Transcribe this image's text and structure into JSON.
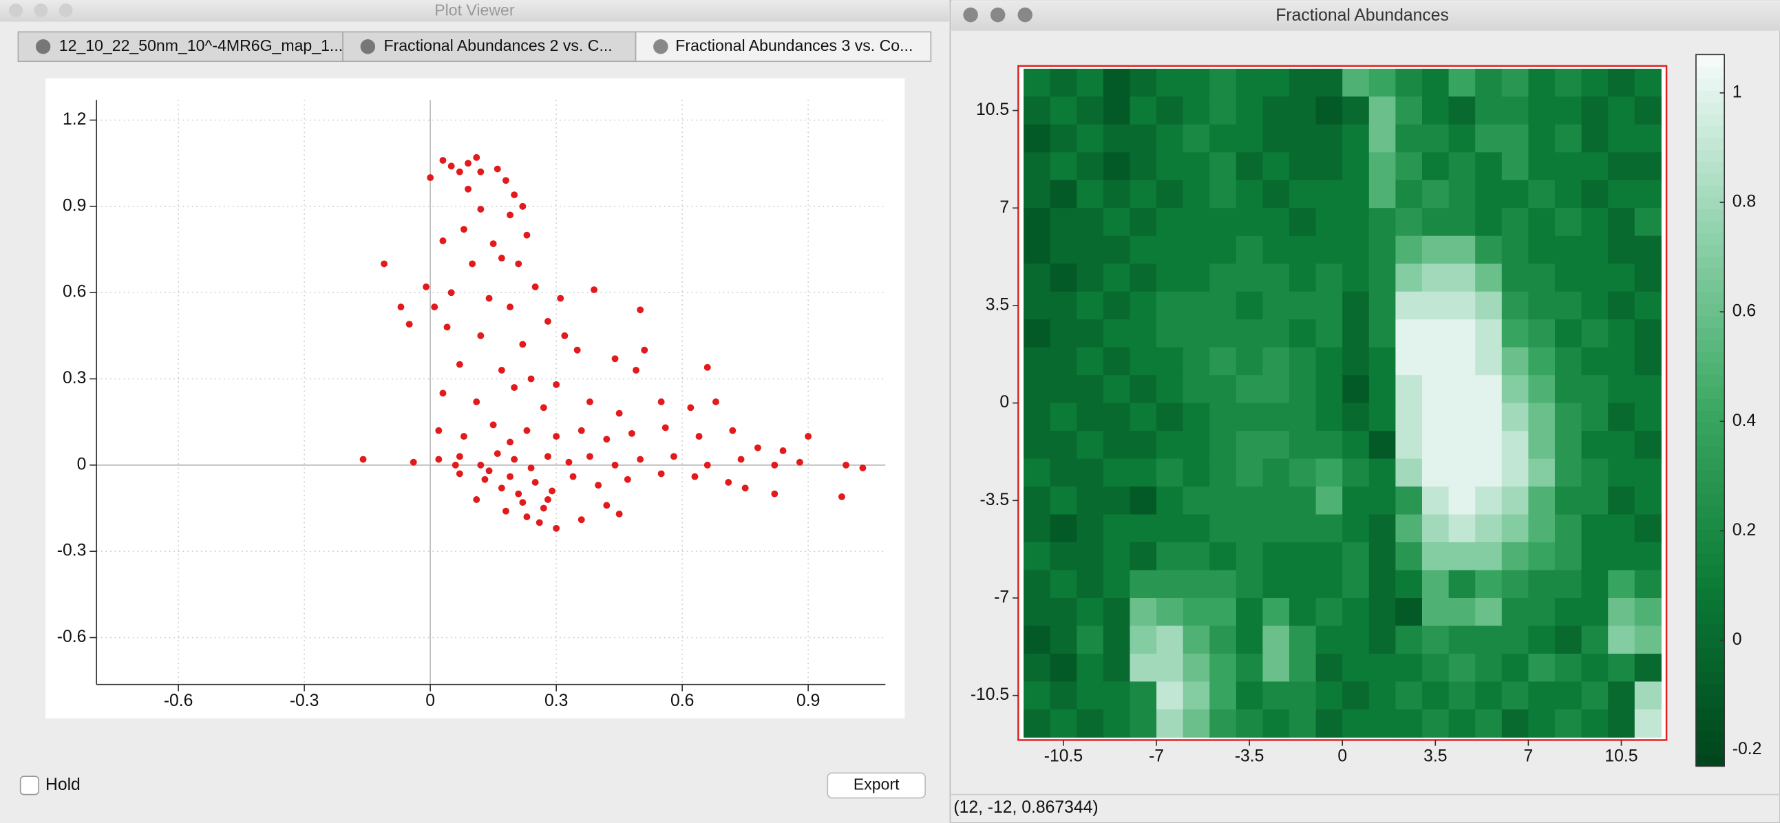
{
  "plot_viewer": {
    "title": "Plot Viewer",
    "tabs": [
      "12_10_22_50nm_10^-4MR6G_map_1...",
      "Fractional Abundances 2 vs. C...",
      "Fractional Abundances 3 vs. Co..."
    ],
    "hold": "Hold",
    "export": "Export"
  },
  "figure_window": {
    "title": "Fractional Abundances",
    "status": "(12, -12, 0.867344)"
  },
  "chart_data": [
    {
      "type": "scatter",
      "color": "#e31a1c",
      "grid": true,
      "xlim": [
        -0.795,
        1.084
      ],
      "ylim": [
        -0.763,
        1.27
      ],
      "xticks": [
        -0.6,
        -0.3,
        0,
        0.3,
        0.6,
        0.9
      ],
      "yticks": [
        -0.6,
        -0.3,
        0,
        0.3,
        0.6,
        0.9,
        1.2
      ],
      "x": [
        -0.16,
        -0.11,
        -0.07,
        -0.05,
        -0.04,
        -0.01,
        0.0,
        0.01,
        0.03,
        0.05,
        0.07,
        0.09,
        0.11,
        0.12,
        0.16,
        0.18,
        0.2,
        0.09,
        0.12,
        0.19,
        0.22,
        0.03,
        0.08,
        0.15,
        0.23,
        0.1,
        0.17,
        0.21,
        0.25,
        0.31,
        0.39,
        0.05,
        0.14,
        0.19,
        0.28,
        0.32,
        0.04,
        0.12,
        0.22,
        0.35,
        0.5,
        0.51,
        0.44,
        0.07,
        0.17,
        0.24,
        0.3,
        0.49,
        0.66,
        0.03,
        0.11,
        0.2,
        0.27,
        0.38,
        0.45,
        0.55,
        0.62,
        0.68,
        0.02,
        0.08,
        0.15,
        0.19,
        0.23,
        0.3,
        0.36,
        0.42,
        0.48,
        0.56,
        0.64,
        0.72,
        0.78,
        0.84,
        0.9,
        0.02,
        0.07,
        0.12,
        0.16,
        0.2,
        0.24,
        0.28,
        0.33,
        0.38,
        0.44,
        0.5,
        0.58,
        0.66,
        0.74,
        0.82,
        0.88,
        0.99,
        1.03,
        0.07,
        0.13,
        0.17,
        0.21,
        0.25,
        0.29,
        0.34,
        0.4,
        0.47,
        0.55,
        0.63,
        0.71,
        0.75,
        0.82,
        0.98,
        0.11,
        0.18,
        0.23,
        0.27,
        0.3,
        0.36,
        0.42,
        0.45,
        0.22,
        0.26,
        0.06,
        0.14,
        0.19,
        0.28
      ],
      "values": [
        0.02,
        0.7,
        0.55,
        0.49,
        0.01,
        0.62,
        1.0,
        0.55,
        1.06,
        1.04,
        1.02,
        1.05,
        1.07,
        1.02,
        1.03,
        0.99,
        0.94,
        0.96,
        0.89,
        0.87,
        0.9,
        0.78,
        0.82,
        0.77,
        0.8,
        0.7,
        0.72,
        0.7,
        0.62,
        0.58,
        0.61,
        0.6,
        0.58,
        0.55,
        0.5,
        0.45,
        0.48,
        0.45,
        0.42,
        0.4,
        0.54,
        0.4,
        0.37,
        0.35,
        0.33,
        0.3,
        0.28,
        0.33,
        0.34,
        0.25,
        0.22,
        0.27,
        0.2,
        0.22,
        0.18,
        0.22,
        0.2,
        0.22,
        0.12,
        0.1,
        0.14,
        0.08,
        0.12,
        0.1,
        0.12,
        0.09,
        0.11,
        0.13,
        0.1,
        0.12,
        0.06,
        0.05,
        0.1,
        0.02,
        0.03,
        0.0,
        0.04,
        0.02,
        -0.01,
        0.03,
        0.01,
        0.03,
        0.0,
        0.02,
        0.03,
        0.0,
        0.02,
        0.0,
        0.01,
        0.0,
        -0.01,
        -0.03,
        -0.05,
        -0.08,
        -0.1,
        -0.06,
        -0.09,
        -0.04,
        -0.07,
        -0.05,
        -0.03,
        -0.04,
        -0.06,
        -0.08,
        -0.1,
        -0.11,
        -0.12,
        -0.16,
        -0.18,
        -0.15,
        -0.22,
        -0.19,
        -0.14,
        -0.17,
        -0.13,
        -0.2,
        0.0,
        -0.02,
        -0.04,
        -0.12
      ]
    },
    {
      "type": "heatmap",
      "colormap": [
        "#00441b",
        "#0b7a36",
        "#3aa862",
        "#90d2ac",
        "#f7fcfd"
      ],
      "xlim": [
        -12.2,
        12.2
      ],
      "ylim": [
        -12.1,
        12.1
      ],
      "clim": [
        -0.23,
        1.07
      ],
      "xticks": [
        -10.5,
        -7,
        -3.5,
        0,
        3.5,
        7,
        10.5
      ],
      "yticks": [
        -10.5,
        -7,
        -3.5,
        0,
        3.5,
        7,
        10.5
      ],
      "cticks": [
        -0.2,
        0,
        0.2,
        0.4,
        0.6,
        0.8,
        1
      ],
      "x": [
        -11.5,
        -10.5,
        -9.5,
        -8.5,
        -7.5,
        -6.5,
        -5.5,
        -4.5,
        -3.5,
        -2.5,
        -1.5,
        -0.5,
        0.5,
        1.5,
        2.5,
        3.5,
        4.5,
        5.5,
        6.5,
        7.5,
        8.5,
        9.5,
        10.5,
        11.5
      ],
      "y": [
        11.5,
        10.5,
        9.5,
        8.5,
        7.5,
        6.5,
        5.5,
        4.5,
        3.5,
        2.5,
        1.5,
        0.5,
        -0.5,
        -1.5,
        -2.5,
        -3.5,
        -4.5,
        -5.5,
        -6.5,
        -7.5,
        -8.5,
        -9.5,
        -10.5,
        -11.5
      ],
      "z": [
        [
          0.1,
          0.0,
          0.1,
          -0.1,
          0.0,
          0.1,
          0.1,
          0.2,
          0.1,
          0.1,
          0.0,
          0.0,
          0.5,
          0.4,
          0.2,
          0.1,
          0.4,
          0.2,
          0.3,
          0.1,
          0.2,
          0.1,
          0.0,
          0.1
        ],
        [
          0.0,
          0.1,
          0.0,
          -0.1,
          0.1,
          0.0,
          0.1,
          0.2,
          0.1,
          0.0,
          0.0,
          -0.1,
          0.0,
          0.6,
          0.3,
          0.1,
          0.0,
          0.2,
          0.2,
          0.1,
          0.1,
          0.0,
          0.1,
          0.0
        ],
        [
          -0.1,
          0.0,
          0.1,
          0.0,
          0.0,
          0.1,
          0.2,
          0.1,
          0.1,
          0.0,
          0.0,
          0.0,
          0.1,
          0.6,
          0.2,
          0.2,
          0.1,
          0.3,
          0.3,
          0.1,
          0.2,
          0.0,
          0.1,
          0.1
        ],
        [
          0.0,
          0.1,
          0.0,
          -0.1,
          0.0,
          0.1,
          0.1,
          0.2,
          0.0,
          0.1,
          0.0,
          0.0,
          0.1,
          0.5,
          0.3,
          0.1,
          0.2,
          0.1,
          0.3,
          0.1,
          0.1,
          0.1,
          0.0,
          0.0
        ],
        [
          0.0,
          -0.1,
          0.1,
          0.0,
          0.1,
          0.0,
          0.1,
          0.2,
          0.1,
          0.0,
          0.1,
          0.1,
          0.1,
          0.5,
          0.2,
          0.3,
          0.2,
          0.1,
          0.1,
          0.2,
          0.1,
          0.0,
          0.1,
          0.1
        ],
        [
          -0.1,
          0.0,
          0.0,
          0.1,
          0.0,
          0.1,
          0.1,
          0.1,
          0.1,
          0.1,
          0.0,
          0.1,
          0.1,
          0.2,
          0.3,
          0.2,
          0.2,
          0.1,
          0.2,
          0.1,
          0.2,
          0.1,
          0.0,
          0.2
        ],
        [
          -0.1,
          0.0,
          0.0,
          0.0,
          0.1,
          0.1,
          0.1,
          0.1,
          0.2,
          0.1,
          0.1,
          0.1,
          0.1,
          0.2,
          0.5,
          0.6,
          0.6,
          0.3,
          0.2,
          0.1,
          0.1,
          0.1,
          0.0,
          0.0
        ],
        [
          0.0,
          -0.1,
          0.0,
          0.1,
          0.0,
          0.1,
          0.1,
          0.2,
          0.2,
          0.2,
          0.1,
          0.2,
          0.1,
          0.2,
          0.7,
          0.8,
          0.8,
          0.6,
          0.2,
          0.2,
          0.1,
          0.1,
          0.1,
          0.0
        ],
        [
          0.0,
          0.0,
          0.1,
          0.0,
          0.1,
          0.2,
          0.2,
          0.2,
          0.1,
          0.2,
          0.2,
          0.2,
          0.0,
          0.2,
          0.9,
          0.9,
          0.9,
          0.8,
          0.3,
          0.2,
          0.2,
          0.1,
          0.0,
          0.1
        ],
        [
          -0.1,
          0.0,
          0.0,
          0.1,
          0.1,
          0.2,
          0.2,
          0.2,
          0.2,
          0.2,
          0.1,
          0.2,
          0.0,
          0.2,
          1.0,
          1.0,
          1.0,
          0.9,
          0.4,
          0.3,
          0.1,
          0.2,
          0.1,
          0.0
        ],
        [
          0.0,
          0.0,
          0.1,
          0.0,
          0.1,
          0.1,
          0.2,
          0.3,
          0.2,
          0.3,
          0.2,
          0.1,
          0.0,
          0.1,
          1.0,
          1.0,
          1.0,
          0.9,
          0.6,
          0.4,
          0.2,
          0.1,
          0.1,
          0.0
        ],
        [
          0.0,
          0.0,
          0.0,
          0.1,
          0.0,
          0.1,
          0.2,
          0.2,
          0.3,
          0.3,
          0.2,
          0.1,
          -0.1,
          0.1,
          0.9,
          1.0,
          1.0,
          1.0,
          0.7,
          0.5,
          0.2,
          0.2,
          0.1,
          0.1
        ],
        [
          0.0,
          0.1,
          0.0,
          0.0,
          0.1,
          0.0,
          0.1,
          0.2,
          0.2,
          0.2,
          0.2,
          0.1,
          0.0,
          0.1,
          0.9,
          1.0,
          1.0,
          1.0,
          0.8,
          0.6,
          0.3,
          0.2,
          0.0,
          0.1
        ],
        [
          0.0,
          0.0,
          0.1,
          0.0,
          0.0,
          0.1,
          0.1,
          0.2,
          0.3,
          0.3,
          0.2,
          0.2,
          0.1,
          -0.1,
          0.9,
          1.0,
          1.0,
          1.0,
          0.9,
          0.6,
          0.3,
          0.1,
          0.1,
          0.0
        ],
        [
          0.1,
          0.0,
          0.0,
          0.1,
          0.1,
          0.2,
          0.1,
          0.2,
          0.3,
          0.2,
          0.3,
          0.4,
          0.2,
          0.1,
          0.8,
          1.0,
          1.0,
          1.0,
          0.9,
          0.7,
          0.3,
          0.2,
          0.1,
          0.1
        ],
        [
          0.0,
          0.1,
          0.0,
          0.0,
          -0.1,
          0.1,
          0.2,
          0.2,
          0.2,
          0.2,
          0.2,
          0.5,
          0.1,
          0.1,
          0.3,
          0.9,
          1.0,
          0.9,
          0.8,
          0.5,
          0.2,
          0.2,
          0.0,
          0.1
        ],
        [
          0.0,
          -0.1,
          0.0,
          0.1,
          0.1,
          0.1,
          0.1,
          0.2,
          0.2,
          0.2,
          0.2,
          0.2,
          0.1,
          0.0,
          0.5,
          0.8,
          0.9,
          0.8,
          0.7,
          0.5,
          0.3,
          0.1,
          0.1,
          0.0
        ],
        [
          0.1,
          0.0,
          0.0,
          0.1,
          0.0,
          0.2,
          0.2,
          0.1,
          0.2,
          0.1,
          0.1,
          0.1,
          0.2,
          0.0,
          0.3,
          0.7,
          0.7,
          0.7,
          0.5,
          0.4,
          0.3,
          0.1,
          0.1,
          0.1
        ],
        [
          0.0,
          0.1,
          0.0,
          0.1,
          0.3,
          0.3,
          0.3,
          0.3,
          0.2,
          0.1,
          0.1,
          0.1,
          0.2,
          0.0,
          0.1,
          0.5,
          0.2,
          0.4,
          0.3,
          0.2,
          0.2,
          0.1,
          0.4,
          0.2
        ],
        [
          0.0,
          0.0,
          0.1,
          0.0,
          0.6,
          0.5,
          0.4,
          0.4,
          0.1,
          0.4,
          0.1,
          0.2,
          0.1,
          0.0,
          -0.1,
          0.5,
          0.5,
          0.6,
          0.2,
          0.2,
          0.1,
          0.1,
          0.6,
          0.5
        ],
        [
          -0.1,
          0.0,
          0.2,
          0.0,
          0.7,
          0.8,
          0.5,
          0.3,
          0.1,
          0.6,
          0.3,
          0.1,
          0.1,
          0.0,
          0.2,
          0.3,
          0.2,
          0.2,
          0.2,
          0.1,
          0.0,
          0.2,
          0.7,
          0.6
        ],
        [
          0.0,
          -0.1,
          0.1,
          0.0,
          0.8,
          0.8,
          0.6,
          0.4,
          0.2,
          0.6,
          0.3,
          0.0,
          0.1,
          0.1,
          0.1,
          0.2,
          0.3,
          0.2,
          0.1,
          0.3,
          0.2,
          0.1,
          0.2,
          0.0
        ],
        [
          0.1,
          0.0,
          0.1,
          0.1,
          0.2,
          0.9,
          0.7,
          0.4,
          0.1,
          0.2,
          0.2,
          0.1,
          0.0,
          0.1,
          0.2,
          0.1,
          0.2,
          0.1,
          0.2,
          0.1,
          0.1,
          0.2,
          0.0,
          0.8
        ],
        [
          0.0,
          0.1,
          0.0,
          0.1,
          0.2,
          0.8,
          0.6,
          0.3,
          0.2,
          0.1,
          0.2,
          0.0,
          0.1,
          0.1,
          0.1,
          0.2,
          0.1,
          0.2,
          0.0,
          0.1,
          0.2,
          0.1,
          0.0,
          0.9
        ]
      ]
    }
  ]
}
